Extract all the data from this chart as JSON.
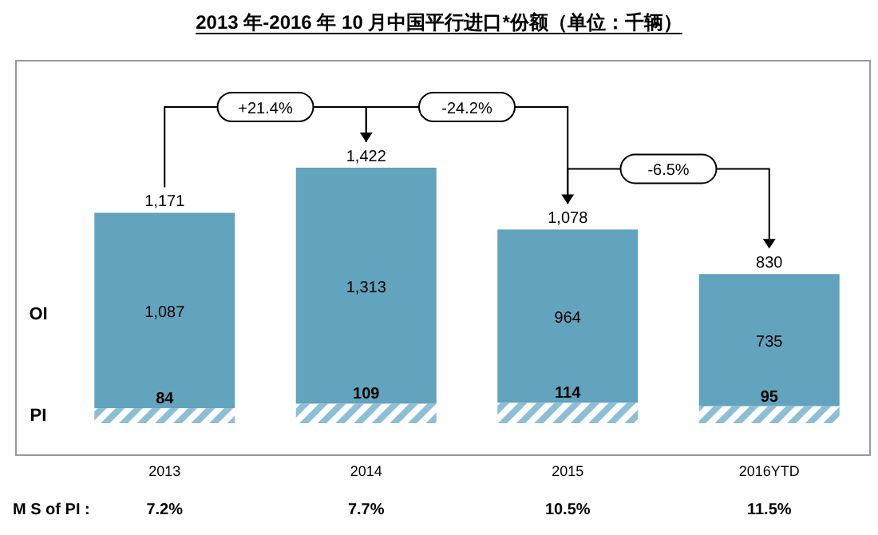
{
  "chart_data": {
    "type": "bar",
    "stacked": true,
    "title": "2013 年-2016 年 10 月中国平行进口*份额（单位：千辆）",
    "categories": [
      "2013",
      "2014",
      "2015",
      "2016YTD"
    ],
    "series": [
      {
        "name": "PI",
        "color": "#8cbfd6",
        "values": [
          84,
          109,
          114,
          95
        ],
        "value_labels": [
          "84",
          "109",
          "114",
          "95"
        ]
      },
      {
        "name": "OI",
        "color": "#62a3bd",
        "values": [
          1087,
          1313,
          964,
          735
        ],
        "value_labels": [
          "1,087",
          "1,313",
          "964",
          "735"
        ]
      }
    ],
    "totals": [
      "1,171",
      "1,422",
      "1,078",
      "830"
    ],
    "annotations": [
      "+21.4%",
      "-24.2%",
      "-6.5%",
      "M S of PI :",
      "7.2%",
      "7.7%",
      "10.5%",
      "11.5%"
    ],
    "legend": false
  }
}
